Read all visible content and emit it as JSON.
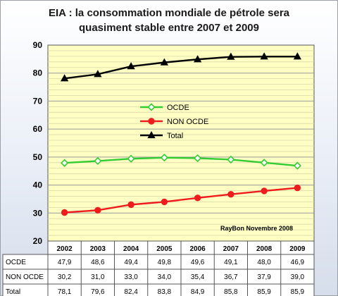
{
  "chart_data": {
    "type": "line",
    "title": "EIA : la consommation mondiale de pétrole sera",
    "subtitle": "quasiment stable entre 2007 et 2009",
    "categories": [
      "2002",
      "2003",
      "2004",
      "2005",
      "2006",
      "2007",
      "2008",
      "2009"
    ],
    "ylim": [
      20,
      90
    ],
    "yticks": [
      20,
      30,
      40,
      50,
      60,
      70,
      80,
      90
    ],
    "grid": true,
    "legend": "center-left",
    "annotation": "RayBon Novembre 2008",
    "series": [
      {
        "name": "OCDE",
        "color": "#33cc33",
        "marker": "diamond",
        "values": [
          47.9,
          48.6,
          49.4,
          49.8,
          49.6,
          49.1,
          48.0,
          46.9
        ],
        "labels": [
          "47,9",
          "48,6",
          "49,4",
          "49,8",
          "49,6",
          "49,1",
          "48,0",
          "46,9"
        ]
      },
      {
        "name": "NON OCDE",
        "color": "#ee1c1c",
        "marker": "circle",
        "values": [
          30.2,
          31.0,
          33.0,
          34.0,
          35.4,
          36.7,
          37.9,
          39.0
        ],
        "labels": [
          "30,2",
          "31,0",
          "33,0",
          "34,0",
          "35,4",
          "36,7",
          "37,9",
          "39,0"
        ]
      },
      {
        "name": "Total",
        "color": "#000000",
        "marker": "triangle",
        "values": [
          78.1,
          79.6,
          82.4,
          83.8,
          84.9,
          85.8,
          85.9,
          85.9
        ],
        "labels": [
          "78,1",
          "79,6",
          "82,4",
          "83,8",
          "84,9",
          "85,8",
          "85,9",
          "85,9"
        ]
      }
    ]
  }
}
